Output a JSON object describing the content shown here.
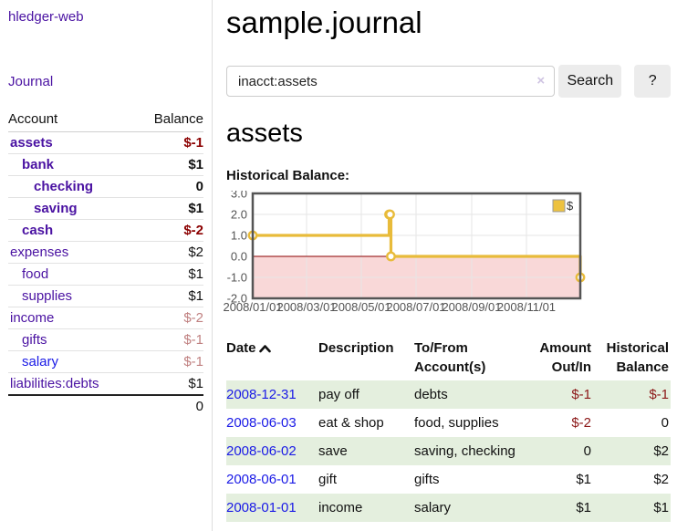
{
  "app": {
    "title": "hledger-web"
  },
  "nav": {
    "journal_label": "Journal"
  },
  "sidebar": {
    "accounts_header": {
      "account": "Account",
      "balance": "Balance"
    },
    "accounts": [
      {
        "label": "assets",
        "balance": "$-1",
        "level": 0,
        "bold": true,
        "label_color": "purple",
        "balance_color": "neg-strong"
      },
      {
        "label": "bank",
        "balance": "$1",
        "level": 1,
        "bold": true,
        "label_color": "purple",
        "balance_color": "black"
      },
      {
        "label": "checking",
        "balance": "0",
        "level": 2,
        "bold": true,
        "label_color": "purple",
        "balance_color": "black"
      },
      {
        "label": "saving",
        "balance": "$1",
        "level": 2,
        "bold": true,
        "label_color": "purple",
        "balance_color": "black"
      },
      {
        "label": "cash",
        "balance": "$-2",
        "level": 1,
        "bold": true,
        "label_color": "purple",
        "balance_color": "neg-strong"
      },
      {
        "label": "expenses",
        "balance": "$2",
        "level": 0,
        "bold": false,
        "label_color": "purple",
        "balance_color": "black"
      },
      {
        "label": "food",
        "balance": "$1",
        "level": 1,
        "bold": false,
        "label_color": "purple",
        "balance_color": "black"
      },
      {
        "label": "supplies",
        "balance": "$1",
        "level": 1,
        "bold": false,
        "label_color": "purple",
        "balance_color": "black"
      },
      {
        "label": "income",
        "balance": "$-2",
        "level": 0,
        "bold": false,
        "label_color": "purple",
        "balance_color": "neg-pale"
      },
      {
        "label": "gifts",
        "balance": "$-1",
        "level": 1,
        "bold": false,
        "label_color": "purple",
        "balance_color": "neg-pale"
      },
      {
        "label": "salary",
        "balance": "$-1",
        "level": 1,
        "bold": false,
        "label_color": "blue",
        "balance_color": "neg-pale"
      },
      {
        "label": "liabilities:debts",
        "balance": "$1",
        "level": 0,
        "bold": false,
        "label_color": "purple",
        "balance_color": "black"
      }
    ],
    "total": "0"
  },
  "header": {
    "title": "sample.journal"
  },
  "search": {
    "value": "inacct:assets",
    "clear_icon": "×",
    "button_label": "Search",
    "help_label": "?"
  },
  "account_page": {
    "heading": "assets",
    "chart_title": "Historical Balance:"
  },
  "chart_data": {
    "type": "line",
    "style": "step",
    "title": "Historical Balance",
    "legend": [
      {
        "label": "$",
        "color": "#edc240"
      }
    ],
    "points": [
      {
        "x": "2008-01-01",
        "y": 1
      },
      {
        "x": "2008-06-01",
        "y": 2
      },
      {
        "x": "2008-06-02",
        "y": 2
      },
      {
        "x": "2008-06-03",
        "y": 0
      },
      {
        "x": "2008-12-31",
        "y": -1
      }
    ],
    "ylim": [
      -2.0,
      3.0
    ],
    "yticks": [
      3.0,
      2.0,
      1.0,
      0.0,
      -1.0,
      -2.0
    ],
    "ytick_labels": [
      "3.0",
      "2.0",
      "1.0",
      "0.0",
      "-1.0",
      "-2.0"
    ],
    "xticks": [
      "2008-01-01",
      "2008-03-01",
      "2008-05-01",
      "2008-07-01",
      "2008-09-01",
      "2008-11-01"
    ],
    "xtick_labels": [
      "2008/01/01",
      "2008/03/01",
      "2008/05/01",
      "2008/07/01",
      "2008/09/01",
      "2008/11/01"
    ],
    "xrange": [
      "2008-01-01",
      "2008-12-31"
    ],
    "grid": true,
    "legend_position": "top-right",
    "negative_fill": "#f9d8d8",
    "zero_line_color": "#8b0000",
    "line_color": "#e8bb3a",
    "colors": {
      "grid": "#e6e6e6",
      "border": "#555",
      "tick_text": "#545454"
    }
  },
  "register": {
    "headers": {
      "date": "Date",
      "sort_icon": "caret-up",
      "description": "Description",
      "accounts": "To/From Account(s)",
      "amount": "Amount Out/In",
      "balance": "Historical Balance"
    },
    "rows": [
      {
        "date": "2008-12-31",
        "description": "pay off",
        "accounts": "debts",
        "amount": "$-1",
        "amount_neg": true,
        "balance": "$-1",
        "balance_neg": true
      },
      {
        "date": "2008-06-03",
        "description": "eat & shop",
        "accounts": "food, supplies",
        "amount": "$-2",
        "amount_neg": true,
        "balance": "0",
        "balance_neg": false
      },
      {
        "date": "2008-06-02",
        "description": "save",
        "accounts": "saving, checking",
        "amount": "0",
        "amount_neg": false,
        "balance": "$2",
        "balance_neg": false
      },
      {
        "date": "2008-06-01",
        "description": "gift",
        "accounts": "gifts",
        "amount": "$1",
        "amount_neg": false,
        "balance": "$2",
        "balance_neg": false
      },
      {
        "date": "2008-01-01",
        "description": "income",
        "accounts": "salary",
        "amount": "$1",
        "amount_neg": false,
        "balance": "$1",
        "balance_neg": false
      }
    ]
  }
}
